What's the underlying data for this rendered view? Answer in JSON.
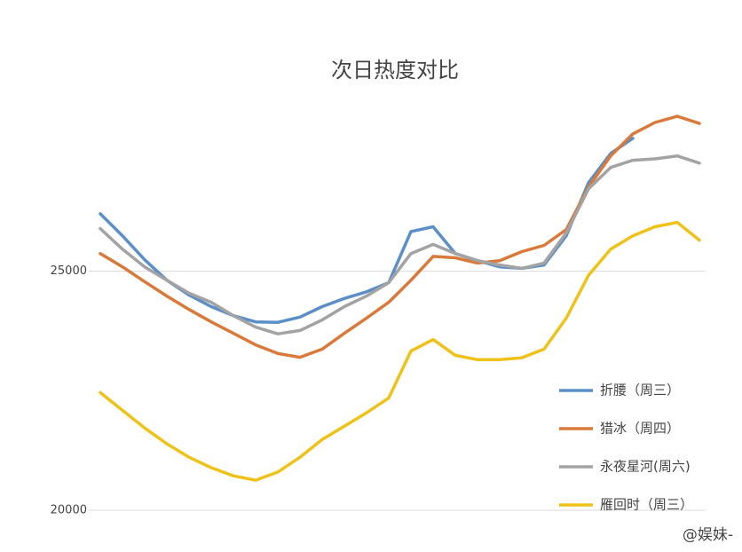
{
  "chart_data": {
    "type": "line",
    "title": "次日热度对比",
    "categories": [
      null,
      null,
      null,
      null,
      null,
      null,
      null,
      null,
      null,
      null,
      null,
      null,
      null,
      null,
      null,
      null,
      null,
      null,
      null,
      null,
      null,
      null,
      null,
      null,
      null,
      null,
      null,
      null
    ],
    "ylim": [
      20000,
      28500
    ],
    "yticks": [
      20000,
      25000
    ],
    "grid": true,
    "legend": "lower right",
    "series": [
      {
        "name": "折腰（周三）",
        "color": "#5b8fc7",
        "values": [
          26200,
          25740,
          25240,
          24810,
          24500,
          24260,
          24070,
          23940,
          23930,
          24040,
          24260,
          24430,
          24570,
          24760,
          25830,
          25930,
          25370,
          25220,
          25090,
          25060,
          25130,
          25740,
          26850,
          27460,
          27780,
          null,
          null,
          null
        ]
      },
      {
        "name": "猎冰（周四）",
        "color": "#d9793a",
        "values": [
          25370,
          25090,
          24780,
          24480,
          24200,
          23940,
          23700,
          23460,
          23280,
          23200,
          23370,
          23700,
          24020,
          24350,
          24810,
          25310,
          25280,
          25170,
          25220,
          25410,
          25540,
          25870,
          26760,
          27410,
          27870,
          28110,
          28240,
          28090
        ]
      },
      {
        "name": "永夜星河(周六)",
        "color": "#a3a3a3",
        "values": [
          25890,
          25460,
          25090,
          24810,
          24540,
          24350,
          24070,
          23830,
          23690,
          23760,
          23980,
          24260,
          24480,
          24760,
          25370,
          25560,
          25370,
          25220,
          25130,
          25060,
          25170,
          25800,
          26720,
          27170,
          27320,
          27350,
          27410,
          27260
        ]
      },
      {
        "name": "雁回时（周三）",
        "color": "#efc21a",
        "values": [
          22460,
          22090,
          21720,
          21390,
          21110,
          20890,
          20720,
          20630,
          20800,
          21110,
          21480,
          21760,
          22040,
          22350,
          23330,
          23570,
          23240,
          23150,
          23150,
          23190,
          23370,
          24020,
          24910,
          25460,
          25740,
          25930,
          26020,
          25650
        ]
      }
    ]
  },
  "watermark": "@娱妹-"
}
